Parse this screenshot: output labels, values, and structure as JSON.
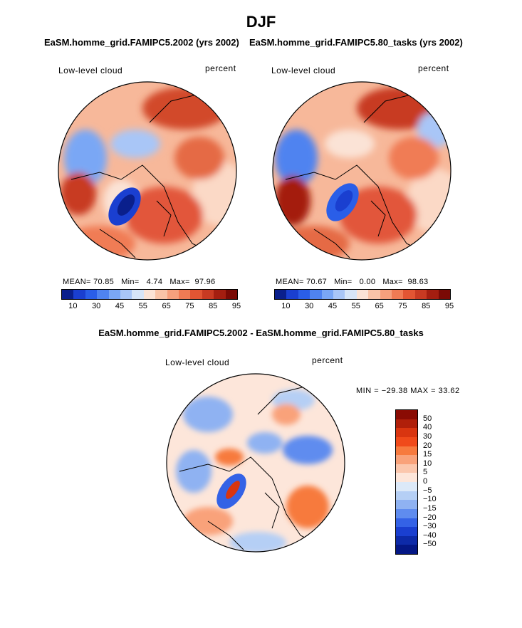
{
  "figure": {
    "title": "DJF",
    "panel_a_title": "EaSM.homme_grid.FAMIPC5.2002 (yrs 2002)",
    "panel_b_title": "EaSM.homme_grid.FAMIPC5.80_tasks (yrs 2002)",
    "diff_title": "EaSM.homme_grid.FAMIPC5.2002 - EaSM.homme_grid.FAMIPC5.80_tasks"
  },
  "chart_data": [
    {
      "type": "heatmap",
      "projection": "north polar stereographic",
      "variable": "Low-level cloud",
      "units": "percent",
      "stats": {
        "mean_label": "MEAN=",
        "mean": "70.85",
        "min_label": "Min=",
        "min": "4.74",
        "max_label": "Max=",
        "max": "97.96"
      },
      "colorbar_ticks": [
        "10",
        "30",
        "45",
        "55",
        "65",
        "75",
        "85",
        "95"
      ],
      "colorbar_colors": [
        "#0a1f8c",
        "#1a3fd0",
        "#2a5ee8",
        "#4f83f0",
        "#7aa7f5",
        "#a9c6f7",
        "#d7e5f8",
        "#fbe3d6",
        "#f9c4a8",
        "#f6a07d",
        "#f07b54",
        "#e25533",
        "#c83a22",
        "#a41e10",
        "#7a0a05"
      ]
    },
    {
      "type": "heatmap",
      "projection": "north polar stereographic",
      "variable": "Low-level cloud",
      "units": "percent",
      "stats": {
        "mean_label": "MEAN=",
        "mean": "70.67",
        "min_label": "Min=",
        "min": "0.00",
        "max_label": "Max=",
        "max": "98.63"
      },
      "colorbar_ticks": [
        "10",
        "30",
        "45",
        "55",
        "65",
        "75",
        "85",
        "95"
      ],
      "colorbar_colors": [
        "#0a1f8c",
        "#1a3fd0",
        "#2a5ee8",
        "#4f83f0",
        "#7aa7f5",
        "#a9c6f7",
        "#d7e5f8",
        "#fbe3d6",
        "#f9c4a8",
        "#f6a07d",
        "#f07b54",
        "#e25533",
        "#c83a22",
        "#a41e10",
        "#7a0a05"
      ]
    },
    {
      "type": "heatmap",
      "projection": "north polar stereographic",
      "variable": "Low-level cloud",
      "units": "percent",
      "stats_text": "MIN = −29.38  MAX =  33.62",
      "colorbar_ticks": [
        "50",
        "40",
        "30",
        "20",
        "15",
        "10",
        "5",
        "0",
        "−5",
        "−10",
        "−15",
        "−20",
        "−30",
        "−40",
        "−50"
      ],
      "colorbar_colors": [
        "#8a0b03",
        "#b01f0a",
        "#d93510",
        "#f04a1a",
        "#f77a3e",
        "#f9a27a",
        "#fbc7ad",
        "#fde6da",
        "#dce9f8",
        "#b5cff5",
        "#8fb2f2",
        "#5f8cef",
        "#3462e6",
        "#1a3fd0",
        "#0d2aa8",
        "#041785"
      ]
    }
  ]
}
